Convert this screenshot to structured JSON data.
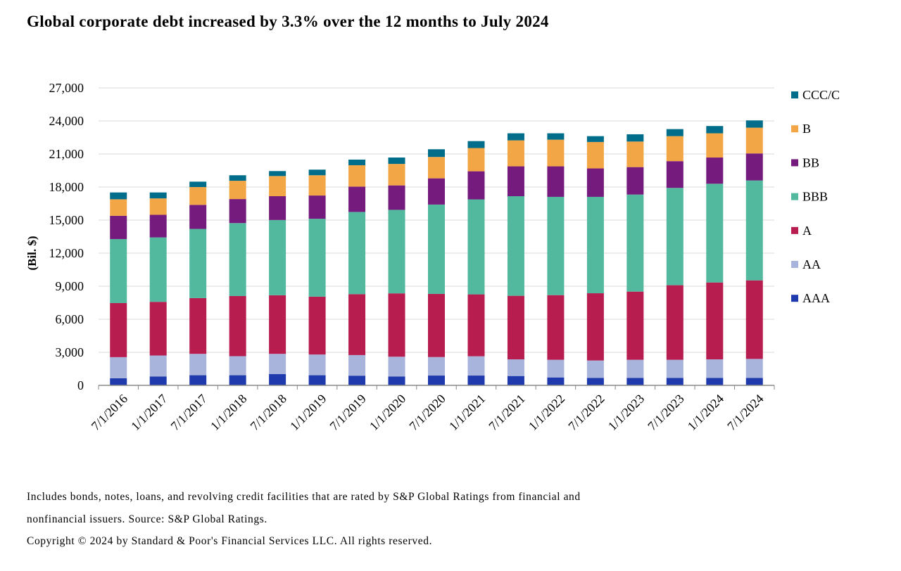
{
  "chart_data": {
    "type": "bar",
    "stacked": true,
    "title": "Global corporate debt increased by 3.3% over the 12 months to July 2024",
    "xlabel": "",
    "ylabel": "(Bil. $)",
    "ylim": [
      0,
      27000
    ],
    "yticks": [
      "0",
      "3,000",
      "6,000",
      "9,000",
      "12,000",
      "15,000",
      "18,000",
      "21,000",
      "24,000",
      "27,000"
    ],
    "grid": true,
    "legend_placement": "right",
    "categories": [
      "7/1/2016",
      "1/1/2017",
      "7/1/2017",
      "1/1/2018",
      "7/1/2018",
      "1/1/2019",
      "7/1/2019",
      "1/1/2020",
      "7/1/2020",
      "1/1/2021",
      "7/1/2021",
      "1/1/2022",
      "7/1/2022",
      "1/1/2023",
      "7/1/2023",
      "1/1/2024",
      "7/1/2024"
    ],
    "series": [
      {
        "name": "AAA",
        "color": "#1f3aad",
        "values": [
          640,
          810,
          920,
          920,
          1020,
          920,
          880,
          810,
          890,
          890,
          850,
          720,
          680,
          680,
          680,
          680,
          680
        ]
      },
      {
        "name": "AA",
        "color": "#a9b4dc",
        "values": [
          1920,
          1900,
          1940,
          1730,
          1840,
          1880,
          1870,
          1790,
          1680,
          1750,
          1510,
          1600,
          1580,
          1640,
          1640,
          1680,
          1720
        ]
      },
      {
        "name": "A",
        "color": "#b81d4f",
        "values": [
          4910,
          4870,
          5060,
          5460,
          5320,
          5250,
          5530,
          5750,
          5730,
          5620,
          5770,
          5870,
          6100,
          6190,
          6770,
          6980,
          7130
        ]
      },
      {
        "name": "BBB",
        "color": "#52b99e",
        "values": [
          5810,
          5850,
          6280,
          6620,
          6830,
          7070,
          7460,
          7580,
          8110,
          8620,
          9040,
          8920,
          8750,
          8810,
          8830,
          8960,
          9070
        ]
      },
      {
        "name": "BB",
        "color": "#741b7d",
        "values": [
          2110,
          2050,
          2180,
          2180,
          2160,
          2110,
          2300,
          2220,
          2380,
          2550,
          2710,
          2770,
          2580,
          2490,
          2430,
          2380,
          2450
        ]
      },
      {
        "name": "B",
        "color": "#f2a646",
        "values": [
          1500,
          1490,
          1620,
          1660,
          1830,
          1840,
          1940,
          1950,
          1940,
          2110,
          2360,
          2420,
          2400,
          2320,
          2270,
          2200,
          2340
        ]
      },
      {
        "name": "CCC/C",
        "color": "#006e8a",
        "values": [
          620,
          540,
          490,
          500,
          450,
          510,
          510,
          580,
          700,
          630,
          640,
          580,
          530,
          660,
          640,
          660,
          660
        ]
      }
    ]
  },
  "notes": {
    "line1": "Includes bonds, notes, loans, and revolving credit facilities that are rated by S&P Global Ratings from financial and",
    "line2": "nonfinancial issuers.  Source: S&P Global Ratings.",
    "line3": "Copyright © 2024 by Standard & Poor's Financial Services LLC. All rights reserved."
  }
}
